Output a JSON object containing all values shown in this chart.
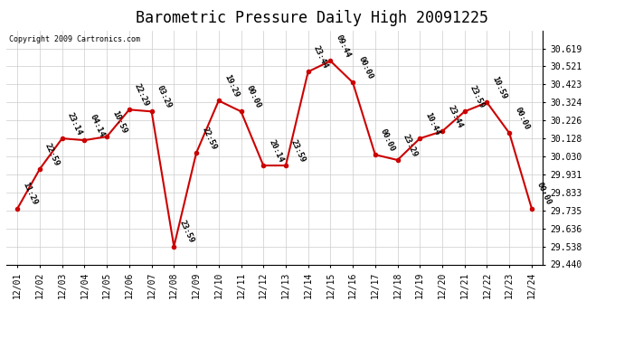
{
  "title": "Barometric Pressure Daily High 20091225",
  "copyright": "Copyright 2009 Cartronics.com",
  "background_color": "#ffffff",
  "plot_bg_color": "#ffffff",
  "grid_color": "#cccccc",
  "line_color": "#cc0000",
  "marker_color": "#cc0000",
  "x_labels": [
    "12/01",
    "12/02",
    "12/03",
    "12/04",
    "12/05",
    "12/06",
    "12/07",
    "12/08",
    "12/09",
    "12/10",
    "12/11",
    "12/12",
    "12/13",
    "12/14",
    "12/15",
    "12/16",
    "12/17",
    "12/18",
    "12/19",
    "12/20",
    "12/21",
    "12/22",
    "12/23",
    "12/24"
  ],
  "y_values": [
    29.745,
    29.961,
    30.128,
    30.118,
    30.138,
    30.285,
    30.275,
    29.538,
    30.049,
    30.334,
    30.275,
    29.98,
    29.98,
    30.492,
    30.551,
    30.433,
    30.039,
    30.01,
    30.128,
    30.167,
    30.275,
    30.324,
    30.157,
    29.745
  ],
  "annotations": [
    "11:29",
    "22:59",
    "23:14",
    "04:14",
    "10:59",
    "22:29",
    "03:29",
    "23:59",
    "22:59",
    "19:29",
    "00:00",
    "20:14",
    "23:59",
    "23:44",
    "09:44",
    "00:00",
    "00:00",
    "23:29",
    "10:44",
    "23:44",
    "23:59",
    "10:59",
    "00:00",
    "00:00"
  ],
  "ylim_min": 29.44,
  "ylim_max": 30.717,
  "yticks": [
    29.44,
    29.538,
    29.636,
    29.735,
    29.833,
    29.931,
    30.03,
    30.128,
    30.226,
    30.324,
    30.423,
    30.521,
    30.619
  ],
  "title_fontsize": 12,
  "label_fontsize": 7,
  "annot_fontsize": 6.5,
  "annot_rotation": -65
}
